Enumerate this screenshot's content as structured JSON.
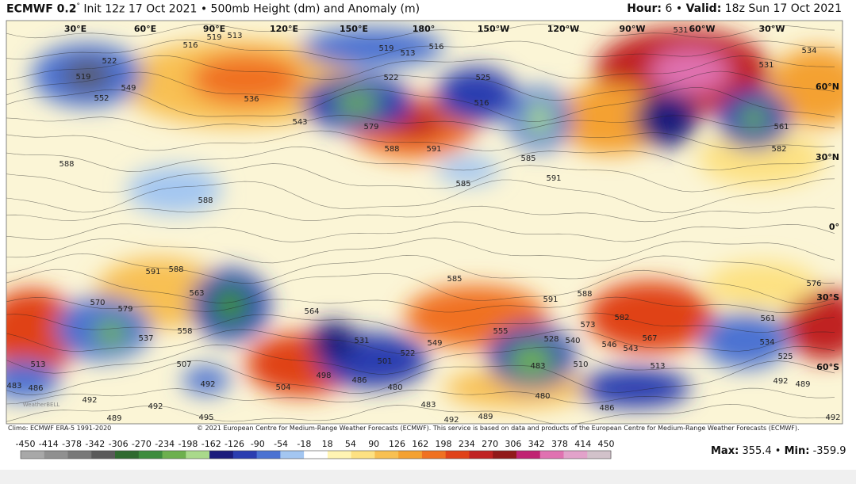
{
  "header": {
    "model": "ECMWF 0.2",
    "degree": "°",
    "title": "Init 12z 17 Oct 2021 • 500mb Height (dm) and Anomaly (m)",
    "hour_label": "Hour:",
    "hour": 6,
    "separator": "•",
    "valid_label": "Valid:",
    "valid": "18z Sun 17 Oct 2021"
  },
  "map": {
    "longitudes": [
      "30°E",
      "60°E",
      "90°E",
      "120°E",
      "150°E",
      "180°",
      "150°W",
      "120°W",
      "90°W",
      "60°W",
      "30°W"
    ],
    "latitudes": [
      "60°N",
      "30°N",
      "0°",
      "30°S",
      "60°S"
    ],
    "contour_labels": [
      522,
      519,
      516,
      519,
      513,
      549,
      552,
      536,
      543,
      579,
      588,
      591,
      513,
      519,
      516,
      522,
      525,
      516,
      585,
      591,
      585,
      588,
      588,
      591,
      588,
      585,
      591,
      588,
      582,
      567,
      573,
      546,
      543,
      540,
      528,
      510,
      513,
      483,
      480,
      486,
      483,
      492,
      489,
      480,
      486,
      501,
      522,
      531,
      549,
      555,
      570,
      579,
      558,
      537,
      507,
      504,
      498,
      492,
      513,
      483,
      486,
      492,
      492,
      489,
      495,
      576,
      561,
      534,
      525,
      492,
      489,
      492,
      531,
      534,
      561,
      582,
      563,
      564,
      531
    ],
    "logo": "WeatherBELL"
  },
  "footer": {
    "climo": "Climo: ECMWF ERA-5 1991-2020",
    "copyright": "© 2021 European Centre for Medium-Range Weather Forecasts (ECMWF). This service is based on data and products of the European Centre for Medium-Range Weather Forecasts (ECMWF)."
  },
  "colorbar": {
    "ticks": [
      -450,
      -414,
      -378,
      -342,
      -306,
      -270,
      -234,
      -198,
      -162,
      -126,
      -90,
      -54,
      -18,
      18,
      54,
      90,
      126,
      162,
      198,
      234,
      270,
      306,
      342,
      378,
      414,
      450
    ],
    "colors": [
      "#a8a8a8",
      "#909090",
      "#787878",
      "#5a5a5a",
      "#2f6a2f",
      "#3d8c3d",
      "#6db04e",
      "#a9d98b",
      "#1c1c7c",
      "#2b3db0",
      "#4b72d2",
      "#a3c6f1",
      "#ffffff",
      "#fff4b3",
      "#fde182",
      "#f8c052",
      "#f4a131",
      "#f07121",
      "#e04219",
      "#c02222",
      "#911919",
      "#c02272",
      "#e072b1",
      "#e2a2ca",
      "#d2c2ca"
    ]
  },
  "stats": {
    "max_label": "Max:",
    "max": 355.4,
    "separator": "•",
    "min_label": "Min:",
    "min": -359.9
  }
}
